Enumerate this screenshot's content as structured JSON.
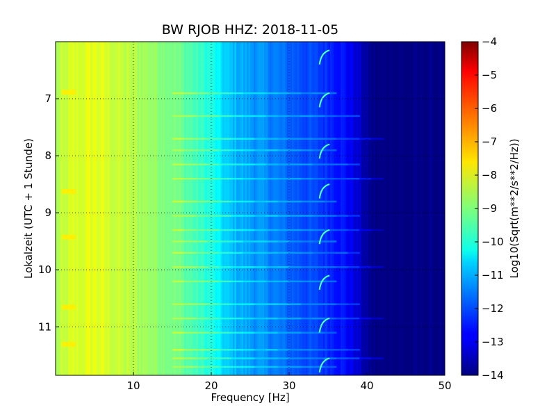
{
  "chart_data": {
    "type": "heatmap",
    "title": "BW RJOB HHZ: 2018-11-05",
    "xlabel": "Frequency [Hz]",
    "ylabel": "Lokalzeit (UTC + 1 Stunde)",
    "xlim": [
      0,
      50
    ],
    "ylim": [
      11.85,
      6.0
    ],
    "y_axis_inverted": true,
    "xticks": [
      10,
      20,
      30,
      40,
      50
    ],
    "yticks": [
      7,
      8,
      9,
      10,
      11
    ],
    "grid": true,
    "colormap": "jet",
    "colorbar": {
      "label": "Log10(Sqrt(m**2/s**2/Hz))",
      "range": [
        -14,
        -4
      ],
      "ticks": [
        -4,
        -5,
        -6,
        -7,
        -8,
        -9,
        -10,
        -11,
        -12,
        -13,
        -14
      ]
    },
    "frequency_profile": {
      "frequencies_hz": [
        0,
        2,
        5,
        8,
        12,
        15,
        18,
        20,
        22,
        25,
        28,
        30,
        33,
        35,
        37,
        38,
        39,
        40,
        41,
        45,
        50
      ],
      "log10_amplitude": [
        -8.6,
        -8.2,
        -8.0,
        -8.3,
        -8.7,
        -9.0,
        -9.6,
        -10.0,
        -10.8,
        -11.2,
        -11.5,
        -11.8,
        -12.1,
        -12.3,
        -12.6,
        -12.9,
        -13.3,
        -13.7,
        -14.0,
        -14.0,
        -14.0
      ]
    },
    "background_color": "#00007f"
  }
}
